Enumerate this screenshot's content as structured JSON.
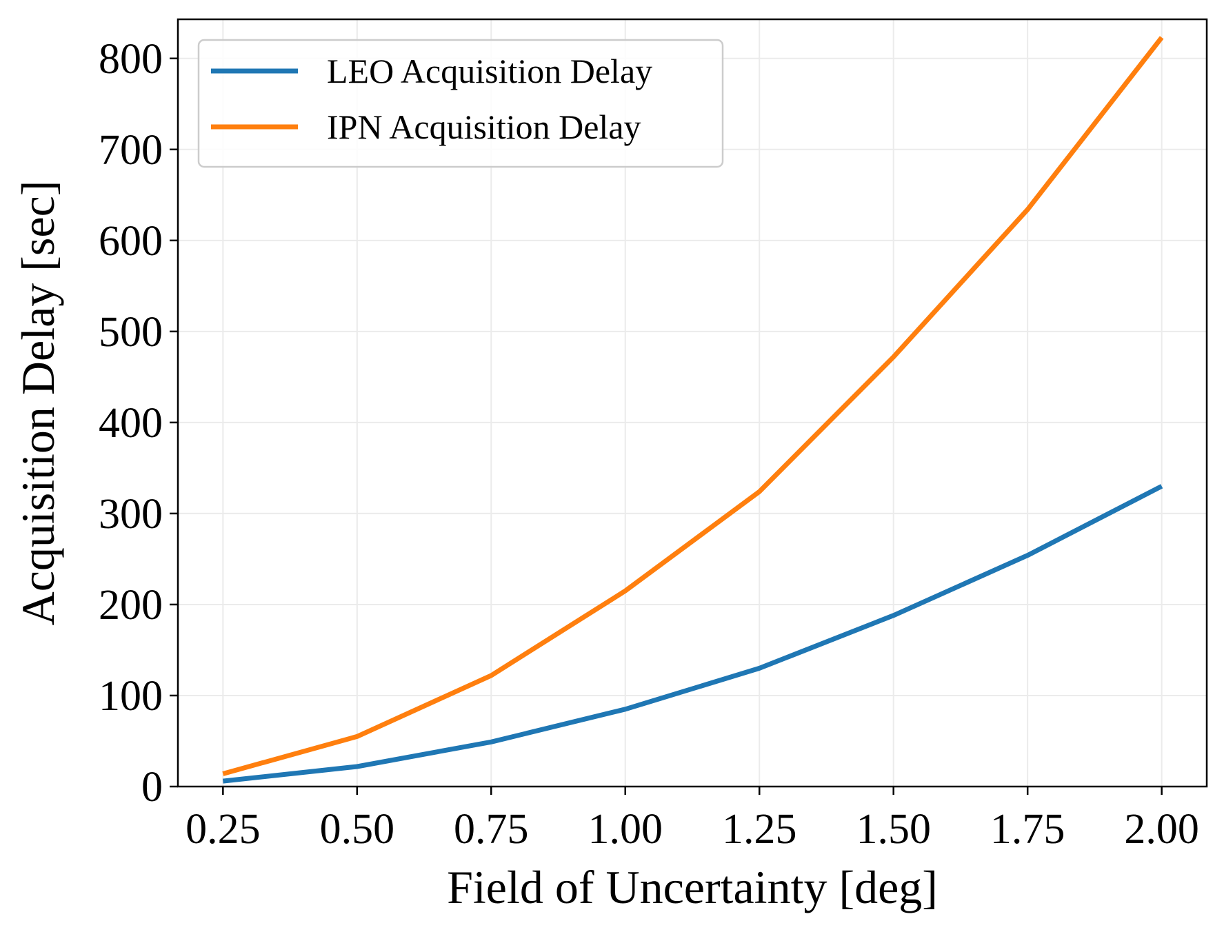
{
  "chart_data": {
    "type": "line",
    "xlabel": "Field of Uncertainty [deg]",
    "ylabel": "Acquisition Delay [sec]",
    "x": [
      0.25,
      0.5,
      0.75,
      1.0,
      1.25,
      1.5,
      1.75,
      2.0
    ],
    "x_tick_values": [
      0.25,
      0.5,
      0.75,
      1.0,
      1.25,
      1.5,
      1.75,
      2.0
    ],
    "x_tick_labels": [
      "0.25",
      "0.50",
      "0.75",
      "1.00",
      "1.25",
      "1.50",
      "1.75",
      "2.00"
    ],
    "y_tick_values": [
      0,
      100,
      200,
      300,
      400,
      500,
      600,
      700,
      800
    ],
    "y_tick_labels": [
      "0",
      "100",
      "200",
      "300",
      "400",
      "500",
      "600",
      "700",
      "800"
    ],
    "xlim": [
      0.166,
      2.084
    ],
    "ylim": [
      0,
      843
    ],
    "grid": true,
    "legend_position": "top-left",
    "series": [
      {
        "name": "LEO Acquisition Delay",
        "color": "#1f77b4",
        "values": [
          6,
          22,
          49,
          85,
          130,
          188,
          254,
          330
        ]
      },
      {
        "name": "IPN Acquisition Delay",
        "color": "#ff7f0e",
        "values": [
          14,
          55,
          122,
          215,
          324,
          472,
          634,
          823
        ]
      }
    ]
  }
}
